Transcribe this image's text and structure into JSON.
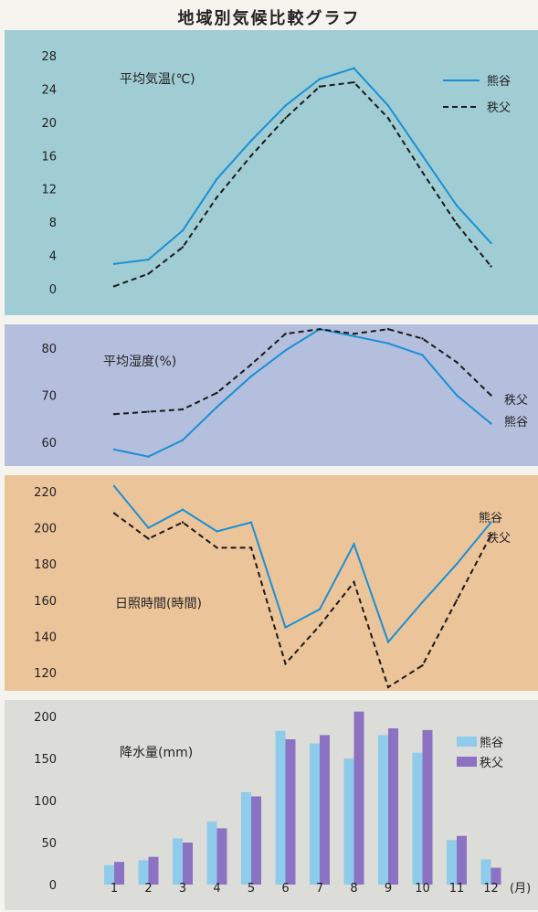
{
  "title": "地域別気候比較グラフ",
  "colors": {
    "kumagaya": "#1a8fd6",
    "chichibu": "#1a1a1a",
    "bar_kumagaya": "#8fcbea",
    "bar_chichibu": "#8b72c2"
  },
  "chart_data": [
    {
      "type": "line",
      "title": "平均気温(℃)",
      "x": [
        1,
        2,
        3,
        4,
        5,
        6,
        7,
        8,
        9,
        10,
        11,
        12
      ],
      "ylim": [
        0,
        28
      ],
      "yticks": [
        "28",
        "24",
        "20",
        "16",
        "12",
        "8",
        "4",
        "0"
      ],
      "legend_placement": "top-right",
      "series": [
        {
          "name": "熊谷",
          "style": "solid",
          "values": [
            3.0,
            3.5,
            7.0,
            13.2,
            17.8,
            22.0,
            25.2,
            26.5,
            22.0,
            16.0,
            10.0,
            5.5
          ]
        },
        {
          "name": "秩父",
          "style": "dashed",
          "values": [
            0.3,
            1.8,
            5.0,
            11.0,
            16.0,
            20.5,
            24.3,
            24.8,
            20.5,
            14.0,
            7.8,
            2.7
          ]
        }
      ]
    },
    {
      "type": "line",
      "title": "平均湿度(%)",
      "x": [
        1,
        2,
        3,
        4,
        5,
        6,
        7,
        8,
        9,
        10,
        11,
        12
      ],
      "ylim": [
        55,
        85
      ],
      "yticks": [
        "80",
        "70",
        "60"
      ],
      "legend_placement": "right, at line ends",
      "series": [
        {
          "name": "熊谷",
          "style": "solid",
          "values": [
            58.5,
            57.0,
            60.5,
            67.5,
            74.0,
            79.5,
            84.0,
            82.5,
            81.0,
            78.5,
            70.0,
            64.0
          ]
        },
        {
          "name": "秩父",
          "style": "dashed",
          "values": [
            66.0,
            66.5,
            67.0,
            70.5,
            76.5,
            83.0,
            84.0,
            83.0,
            84.0,
            82.0,
            77.0,
            70.0
          ]
        }
      ]
    },
    {
      "type": "line",
      "title": "日照時間(時間)",
      "x": [
        1,
        2,
        3,
        4,
        5,
        6,
        7,
        8,
        9,
        10,
        11,
        12
      ],
      "ylim": [
        110,
        225
      ],
      "yticks": [
        "220",
        "200",
        "180",
        "160",
        "140",
        "120"
      ],
      "legend_placement": "right, at line ends",
      "series": [
        {
          "name": "熊谷",
          "style": "solid",
          "values": [
            223,
            200,
            210,
            198,
            203,
            145,
            155,
            191,
            137,
            159,
            180,
            203
          ]
        },
        {
          "name": "秩父",
          "style": "dashed",
          "values": [
            208,
            194,
            203,
            189,
            189,
            125,
            146,
            170,
            112,
            124,
            160,
            196
          ]
        }
      ]
    },
    {
      "type": "bar",
      "title": "降水量(mm)",
      "categories": [
        "1",
        "2",
        "3",
        "4",
        "5",
        "6",
        "7",
        "8",
        "9",
        "10",
        "11",
        "12"
      ],
      "xlabel": "(月)",
      "ylim": [
        0,
        210
      ],
      "yticks": [
        "200",
        "150",
        "100",
        "50",
        "0"
      ],
      "legend_placement": "top-right",
      "series": [
        {
          "name": "熊谷",
          "values": [
            23,
            29,
            55,
            75,
            110,
            183,
            168,
            150,
            178,
            157,
            53,
            30
          ]
        },
        {
          "name": "秩父",
          "values": [
            27,
            33,
            50,
            67,
            105,
            173,
            178,
            206,
            186,
            184,
            58,
            20
          ]
        }
      ]
    }
  ]
}
